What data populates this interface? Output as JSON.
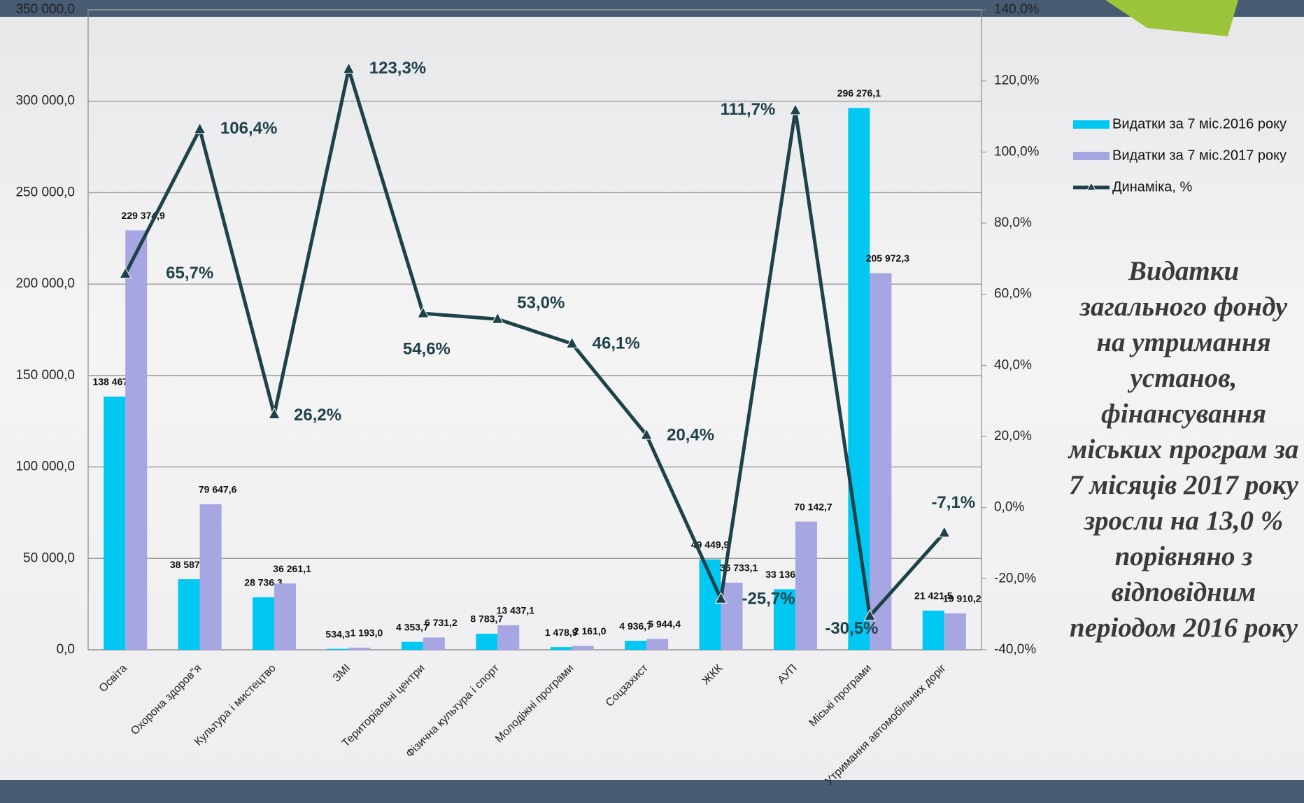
{
  "chart_data": {
    "type": "bar",
    "categories": [
      "Освіта",
      "Охорона здоров\"я",
      "Культура і мистецтво",
      "ЗМІ",
      "Територіальні центри",
      "Фізична культура і спорт",
      "Молодіжні програми",
      "Соцзахист",
      "ЖКК",
      "АУП",
      "Міські програми",
      "Утримання автомобільних доріг"
    ],
    "series": [
      {
        "name": "Видатки за 7 міс.2016 року",
        "type": "bar",
        "color": "#00c8f2",
        "values": [
          138467.5,
          38587.7,
          28736.3,
          534.3,
          4353.7,
          8783.7,
          1478.9,
          4936.7,
          49449.9,
          33136.7,
          296276.1,
          21421.5
        ],
        "value_labels": [
          "138 467,5",
          "38 587,7",
          "28 736,3",
          "534,3",
          "4 353,7",
          "8 783,7",
          "1 478,9",
          "4 936,7",
          "49 449,9",
          "33 136,7",
          "296 276,1",
          "21 421,5"
        ]
      },
      {
        "name": "Видатки за 7 міс.2017 року",
        "type": "bar",
        "color": "#a6a6e2",
        "values": [
          229374.9,
          79647.6,
          36261.1,
          1193.0,
          6731.2,
          13437.1,
          2161.0,
          5944.4,
          36733.1,
          70142.7,
          205972.3,
          19910.2
        ],
        "value_labels": [
          "229 374,9",
          "79 647,6",
          "36 261,1",
          "1 193,0",
          "6 731,2",
          "13 437,1",
          "2 161,0",
          "5 944,4",
          "36 733,1",
          "70 142,7",
          "205 972,3",
          "19 910,2"
        ]
      },
      {
        "name": "Динаміка, %",
        "type": "line",
        "axis": "y2",
        "color": "#1f4249",
        "values": [
          65.7,
          106.4,
          26.2,
          123.3,
          54.6,
          53.0,
          46.1,
          20.4,
          -25.7,
          111.7,
          -30.5,
          -7.1
        ],
        "value_labels": [
          "65,7%",
          "106,4%",
          "26,2%",
          "123,3%",
          "54,6%",
          "53,0%",
          "46,1%",
          "20,4%",
          "-25,7%",
          "111,7%",
          "-30,5%",
          "-7,1%"
        ]
      }
    ],
    "ylim": [
      0,
      350000
    ],
    "yticks": [
      {
        "value": 0,
        "label": "0,0"
      },
      {
        "value": 50000,
        "label": "50 000,0"
      },
      {
        "value": 100000,
        "label": "100 000,0"
      },
      {
        "value": 150000,
        "label": "150 000,0"
      },
      {
        "value": 200000,
        "label": "200 000,0"
      },
      {
        "value": 250000,
        "label": "250 000,0"
      },
      {
        "value": 300000,
        "label": "300 000,0"
      },
      {
        "value": 350000,
        "label": "350 000,0"
      }
    ],
    "y2lim": [
      -40,
      140
    ],
    "y2ticks": [
      {
        "value": -40,
        "label": "-40,0%"
      },
      {
        "value": -20,
        "label": "-20,0%"
      },
      {
        "value": 0,
        "label": "0,0%"
      },
      {
        "value": 20,
        "label": "20,0%"
      },
      {
        "value": 40,
        "label": "40,0%"
      },
      {
        "value": 60,
        "label": "60,0%"
      },
      {
        "value": 80,
        "label": "80,0%"
      },
      {
        "value": 100,
        "label": "100,0%"
      },
      {
        "value": 120,
        "label": "120,0%"
      },
      {
        "value": 140,
        "label": "140,0%"
      }
    ],
    "grid": true,
    "legend": "right",
    "annotation": "Видатки загального фонду на утримання установ, фінансування міських програм за 7 місяців 2017 року зросли на 13,0 % порівняно з відповідним періодом 2016 року"
  }
}
